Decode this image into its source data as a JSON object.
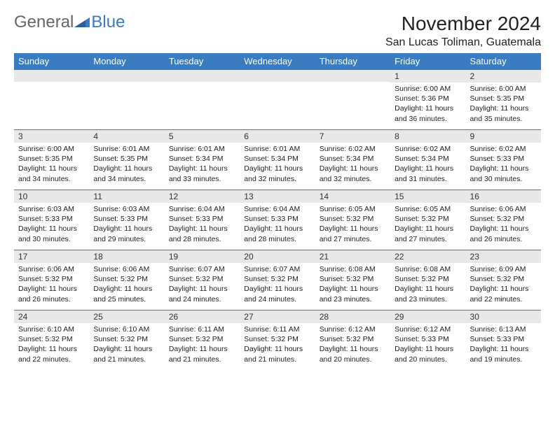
{
  "logo": {
    "general": "General",
    "blue": "Blue"
  },
  "title": "November 2024",
  "location": "San Lucas Toliman, Guatemala",
  "header_bg": "#3b7bbf",
  "daynum_bg": "#e8e8e8",
  "weekdays": [
    "Sunday",
    "Monday",
    "Tuesday",
    "Wednesday",
    "Thursday",
    "Friday",
    "Saturday"
  ],
  "weeks": [
    [
      null,
      null,
      null,
      null,
      null,
      {
        "n": "1",
        "sr": "Sunrise: 6:00 AM",
        "ss": "Sunset: 5:36 PM",
        "dl1": "Daylight: 11 hours",
        "dl2": "and 36 minutes."
      },
      {
        "n": "2",
        "sr": "Sunrise: 6:00 AM",
        "ss": "Sunset: 5:35 PM",
        "dl1": "Daylight: 11 hours",
        "dl2": "and 35 minutes."
      }
    ],
    [
      {
        "n": "3",
        "sr": "Sunrise: 6:00 AM",
        "ss": "Sunset: 5:35 PM",
        "dl1": "Daylight: 11 hours",
        "dl2": "and 34 minutes."
      },
      {
        "n": "4",
        "sr": "Sunrise: 6:01 AM",
        "ss": "Sunset: 5:35 PM",
        "dl1": "Daylight: 11 hours",
        "dl2": "and 34 minutes."
      },
      {
        "n": "5",
        "sr": "Sunrise: 6:01 AM",
        "ss": "Sunset: 5:34 PM",
        "dl1": "Daylight: 11 hours",
        "dl2": "and 33 minutes."
      },
      {
        "n": "6",
        "sr": "Sunrise: 6:01 AM",
        "ss": "Sunset: 5:34 PM",
        "dl1": "Daylight: 11 hours",
        "dl2": "and 32 minutes."
      },
      {
        "n": "7",
        "sr": "Sunrise: 6:02 AM",
        "ss": "Sunset: 5:34 PM",
        "dl1": "Daylight: 11 hours",
        "dl2": "and 32 minutes."
      },
      {
        "n": "8",
        "sr": "Sunrise: 6:02 AM",
        "ss": "Sunset: 5:34 PM",
        "dl1": "Daylight: 11 hours",
        "dl2": "and 31 minutes."
      },
      {
        "n": "9",
        "sr": "Sunrise: 6:02 AM",
        "ss": "Sunset: 5:33 PM",
        "dl1": "Daylight: 11 hours",
        "dl2": "and 30 minutes."
      }
    ],
    [
      {
        "n": "10",
        "sr": "Sunrise: 6:03 AM",
        "ss": "Sunset: 5:33 PM",
        "dl1": "Daylight: 11 hours",
        "dl2": "and 30 minutes."
      },
      {
        "n": "11",
        "sr": "Sunrise: 6:03 AM",
        "ss": "Sunset: 5:33 PM",
        "dl1": "Daylight: 11 hours",
        "dl2": "and 29 minutes."
      },
      {
        "n": "12",
        "sr": "Sunrise: 6:04 AM",
        "ss": "Sunset: 5:33 PM",
        "dl1": "Daylight: 11 hours",
        "dl2": "and 28 minutes."
      },
      {
        "n": "13",
        "sr": "Sunrise: 6:04 AM",
        "ss": "Sunset: 5:33 PM",
        "dl1": "Daylight: 11 hours",
        "dl2": "and 28 minutes."
      },
      {
        "n": "14",
        "sr": "Sunrise: 6:05 AM",
        "ss": "Sunset: 5:32 PM",
        "dl1": "Daylight: 11 hours",
        "dl2": "and 27 minutes."
      },
      {
        "n": "15",
        "sr": "Sunrise: 6:05 AM",
        "ss": "Sunset: 5:32 PM",
        "dl1": "Daylight: 11 hours",
        "dl2": "and 27 minutes."
      },
      {
        "n": "16",
        "sr": "Sunrise: 6:06 AM",
        "ss": "Sunset: 5:32 PM",
        "dl1": "Daylight: 11 hours",
        "dl2": "and 26 minutes."
      }
    ],
    [
      {
        "n": "17",
        "sr": "Sunrise: 6:06 AM",
        "ss": "Sunset: 5:32 PM",
        "dl1": "Daylight: 11 hours",
        "dl2": "and 26 minutes."
      },
      {
        "n": "18",
        "sr": "Sunrise: 6:06 AM",
        "ss": "Sunset: 5:32 PM",
        "dl1": "Daylight: 11 hours",
        "dl2": "and 25 minutes."
      },
      {
        "n": "19",
        "sr": "Sunrise: 6:07 AM",
        "ss": "Sunset: 5:32 PM",
        "dl1": "Daylight: 11 hours",
        "dl2": "and 24 minutes."
      },
      {
        "n": "20",
        "sr": "Sunrise: 6:07 AM",
        "ss": "Sunset: 5:32 PM",
        "dl1": "Daylight: 11 hours",
        "dl2": "and 24 minutes."
      },
      {
        "n": "21",
        "sr": "Sunrise: 6:08 AM",
        "ss": "Sunset: 5:32 PM",
        "dl1": "Daylight: 11 hours",
        "dl2": "and 23 minutes."
      },
      {
        "n": "22",
        "sr": "Sunrise: 6:08 AM",
        "ss": "Sunset: 5:32 PM",
        "dl1": "Daylight: 11 hours",
        "dl2": "and 23 minutes."
      },
      {
        "n": "23",
        "sr": "Sunrise: 6:09 AM",
        "ss": "Sunset: 5:32 PM",
        "dl1": "Daylight: 11 hours",
        "dl2": "and 22 minutes."
      }
    ],
    [
      {
        "n": "24",
        "sr": "Sunrise: 6:10 AM",
        "ss": "Sunset: 5:32 PM",
        "dl1": "Daylight: 11 hours",
        "dl2": "and 22 minutes."
      },
      {
        "n": "25",
        "sr": "Sunrise: 6:10 AM",
        "ss": "Sunset: 5:32 PM",
        "dl1": "Daylight: 11 hours",
        "dl2": "and 21 minutes."
      },
      {
        "n": "26",
        "sr": "Sunrise: 6:11 AM",
        "ss": "Sunset: 5:32 PM",
        "dl1": "Daylight: 11 hours",
        "dl2": "and 21 minutes."
      },
      {
        "n": "27",
        "sr": "Sunrise: 6:11 AM",
        "ss": "Sunset: 5:32 PM",
        "dl1": "Daylight: 11 hours",
        "dl2": "and 21 minutes."
      },
      {
        "n": "28",
        "sr": "Sunrise: 6:12 AM",
        "ss": "Sunset: 5:32 PM",
        "dl1": "Daylight: 11 hours",
        "dl2": "and 20 minutes."
      },
      {
        "n": "29",
        "sr": "Sunrise: 6:12 AM",
        "ss": "Sunset: 5:33 PM",
        "dl1": "Daylight: 11 hours",
        "dl2": "and 20 minutes."
      },
      {
        "n": "30",
        "sr": "Sunrise: 6:13 AM",
        "ss": "Sunset: 5:33 PM",
        "dl1": "Daylight: 11 hours",
        "dl2": "and 19 minutes."
      }
    ]
  ]
}
